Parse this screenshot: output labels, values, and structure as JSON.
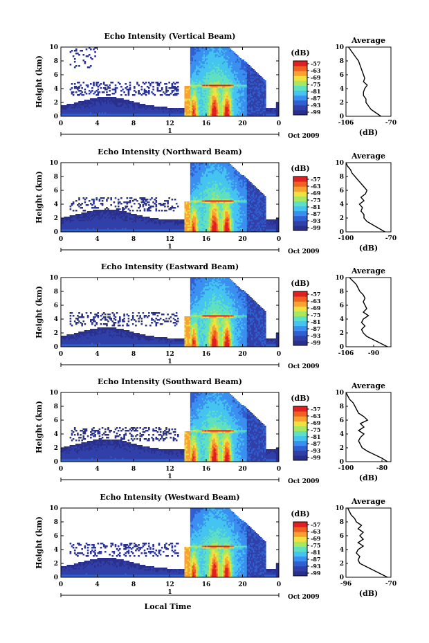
{
  "chart_data": [
    {
      "type": "heatmap",
      "title": "Echo Intensity (Vertical Beam)",
      "ylabel": "Height (km)",
      "xlim": [
        0,
        24
      ],
      "ylim": [
        0,
        10
      ],
      "x_ticks": [
        "0",
        "4",
        "8",
        "12",
        "16",
        "20",
        "0"
      ],
      "y_ticks": [
        "0",
        "2",
        "4",
        "6",
        "8",
        "10"
      ],
      "date_label": "1",
      "month_label": "Oct 2009",
      "colorbar": {
        "title": "(dB)",
        "ticks": [
          "-57",
          "-63",
          "-69",
          "-75",
          "-81",
          "-87",
          "-93",
          "-99"
        ]
      },
      "average": {
        "title": "Average",
        "xlabel": "(dB)",
        "x_ticks": [
          "-106",
          "-70"
        ],
        "xlim": [
          -106,
          -70
        ],
        "height": [
          0,
          0.5,
          1,
          1.5,
          2,
          2.5,
          3,
          3.5,
          4,
          4.5,
          5,
          5.5,
          6,
          6.5,
          7,
          7.5,
          8,
          8.5,
          9,
          9.5,
          10
        ],
        "value": [
          -78,
          -82,
          -86,
          -88,
          -90,
          -90,
          -92,
          -92,
          -91,
          -89,
          -92,
          -91,
          -92,
          -93,
          -94,
          -95,
          -96,
          -98,
          -100,
          -102,
          -104
        ]
      }
    },
    {
      "type": "heatmap",
      "title": "Echo Intensity (Northward Beam)",
      "ylabel": "Height (km)",
      "xlim": [
        0,
        24
      ],
      "ylim": [
        0,
        10
      ],
      "x_ticks": [
        "0",
        "4",
        "8",
        "12",
        "16",
        "20",
        "0"
      ],
      "y_ticks": [
        "0",
        "2",
        "4",
        "6",
        "8",
        "10"
      ],
      "date_label": "1",
      "month_label": "Oct 2009",
      "colorbar": {
        "title": "(dB)",
        "ticks": [
          "-57",
          "-63",
          "-69",
          "-75",
          "-81",
          "-87",
          "-93",
          "-99"
        ]
      },
      "average": {
        "title": "Average",
        "xlabel": "(dB)",
        "x_ticks": [
          "-100",
          "-70"
        ],
        "xlim": [
          -100,
          -70
        ],
        "height": [
          0,
          0.5,
          1,
          1.5,
          2,
          2.5,
          3,
          3.5,
          4,
          4.5,
          5,
          5.5,
          6,
          6.5,
          7,
          7.5,
          8,
          8.5,
          9,
          9.5,
          10
        ],
        "value": [
          -74,
          -78,
          -82,
          -86,
          -88,
          -88,
          -90,
          -89,
          -91,
          -88,
          -90,
          -87,
          -86,
          -88,
          -90,
          -92,
          -94,
          -96,
          -97,
          -99,
          -100
        ]
      }
    },
    {
      "type": "heatmap",
      "title": "Echo Intensity (Eastward Beam)",
      "ylabel": "Height (km)",
      "xlim": [
        0,
        24
      ],
      "ylim": [
        0,
        10
      ],
      "x_ticks": [
        "0",
        "4",
        "8",
        "12",
        "16",
        "20",
        "0"
      ],
      "y_ticks": [
        "0",
        "2",
        "4",
        "6",
        "8",
        "10"
      ],
      "date_label": "1",
      "month_label": "Oct 2009",
      "colorbar": {
        "title": "(dB)",
        "ticks": [
          "-57",
          "-63",
          "-69",
          "-75",
          "-81",
          "-87",
          "-93",
          "-99"
        ]
      },
      "average": {
        "title": "Average",
        "xlabel": "",
        "x_ticks": [
          "-106",
          "-90"
        ],
        "xlim": [
          -106,
          -80
        ],
        "height": [
          0,
          0.5,
          1,
          1.5,
          2,
          2.5,
          3,
          3.5,
          4,
          4.5,
          5,
          5.5,
          6,
          6.5,
          7,
          7.5,
          8,
          8.5,
          9,
          9.5,
          10
        ],
        "value": [
          -82,
          -86,
          -90,
          -94,
          -96,
          -97,
          -95,
          -97,
          -96,
          -93,
          -96,
          -94,
          -95,
          -96,
          -95,
          -96,
          -98,
          -99,
          -100,
          -102,
          -104
        ]
      }
    },
    {
      "type": "heatmap",
      "title": "Echo Intensity (Southward Beam)",
      "ylabel": "Height (km)",
      "xlim": [
        0,
        24
      ],
      "ylim": [
        0,
        10
      ],
      "x_ticks": [
        "0",
        "4",
        "8",
        "12",
        "16",
        "20",
        "0"
      ],
      "y_ticks": [
        "0",
        "2",
        "4",
        "6",
        "8",
        "10"
      ],
      "date_label": "1",
      "month_label": "Oct 2009",
      "colorbar": {
        "title": "(dB)",
        "ticks": [
          "-57",
          "-63",
          "-69",
          "-75",
          "-81",
          "-87",
          "-93",
          "-99"
        ]
      },
      "average": {
        "title": "Average",
        "xlabel": "(dB)",
        "x_ticks": [
          "-100",
          "-80"
        ],
        "xlim": [
          -100,
          -75
        ],
        "height": [
          0,
          0.5,
          1,
          1.5,
          2,
          2.5,
          3,
          3.5,
          4,
          4.5,
          5,
          5.5,
          6,
          6.5,
          7,
          7.5,
          8,
          8.5,
          9,
          9.5,
          10
        ],
        "value": [
          -77,
          -80,
          -84,
          -88,
          -91,
          -92,
          -93,
          -92,
          -90,
          -93,
          -90,
          -92,
          -88,
          -90,
          -93,
          -94,
          -95,
          -96,
          -98,
          -99,
          -100
        ]
      }
    },
    {
      "type": "heatmap",
      "title": "Echo Intensity (Westward Beam)",
      "ylabel": "Height (km)",
      "xlim": [
        0,
        24
      ],
      "ylim": [
        0,
        10
      ],
      "x_ticks": [
        "0",
        "4",
        "8",
        "12",
        "16",
        "20",
        "0"
      ],
      "y_ticks": [
        "0",
        "2",
        "4",
        "6",
        "8",
        "10"
      ],
      "date_label": "1",
      "month_label": "Oct 2009",
      "colorbar": {
        "title": "(dB)",
        "ticks": [
          "-57",
          "-63",
          "-69",
          "-75",
          "-81",
          "-87",
          "-93",
          "-99"
        ]
      },
      "average": {
        "title": "Average",
        "xlabel": "(dB)",
        "x_ticks": [
          "-96",
          "-70"
        ],
        "xlim": [
          -96,
          -70
        ],
        "height": [
          0,
          0.5,
          1,
          1.5,
          2,
          2.5,
          3,
          3.5,
          4,
          4.5,
          5,
          5.5,
          6,
          6.5,
          7,
          7.5,
          8,
          8.5,
          9,
          9.5,
          10
        ],
        "value": [
          -72,
          -76,
          -80,
          -84,
          -88,
          -89,
          -88,
          -90,
          -89,
          -86,
          -89,
          -86,
          -88,
          -86,
          -89,
          -87,
          -90,
          -91,
          -93,
          -94,
          -95
        ]
      }
    }
  ],
  "footer": {
    "xlabel": "Local Time"
  },
  "colors": {
    "colormap": [
      "#2a2f8c",
      "#3140a8",
      "#2f5fd0",
      "#3a8ff0",
      "#45c4f0",
      "#5fe0c0",
      "#a8e860",
      "#f0e040",
      "#f8a030",
      "#f06020",
      "#e02020"
    ]
  }
}
